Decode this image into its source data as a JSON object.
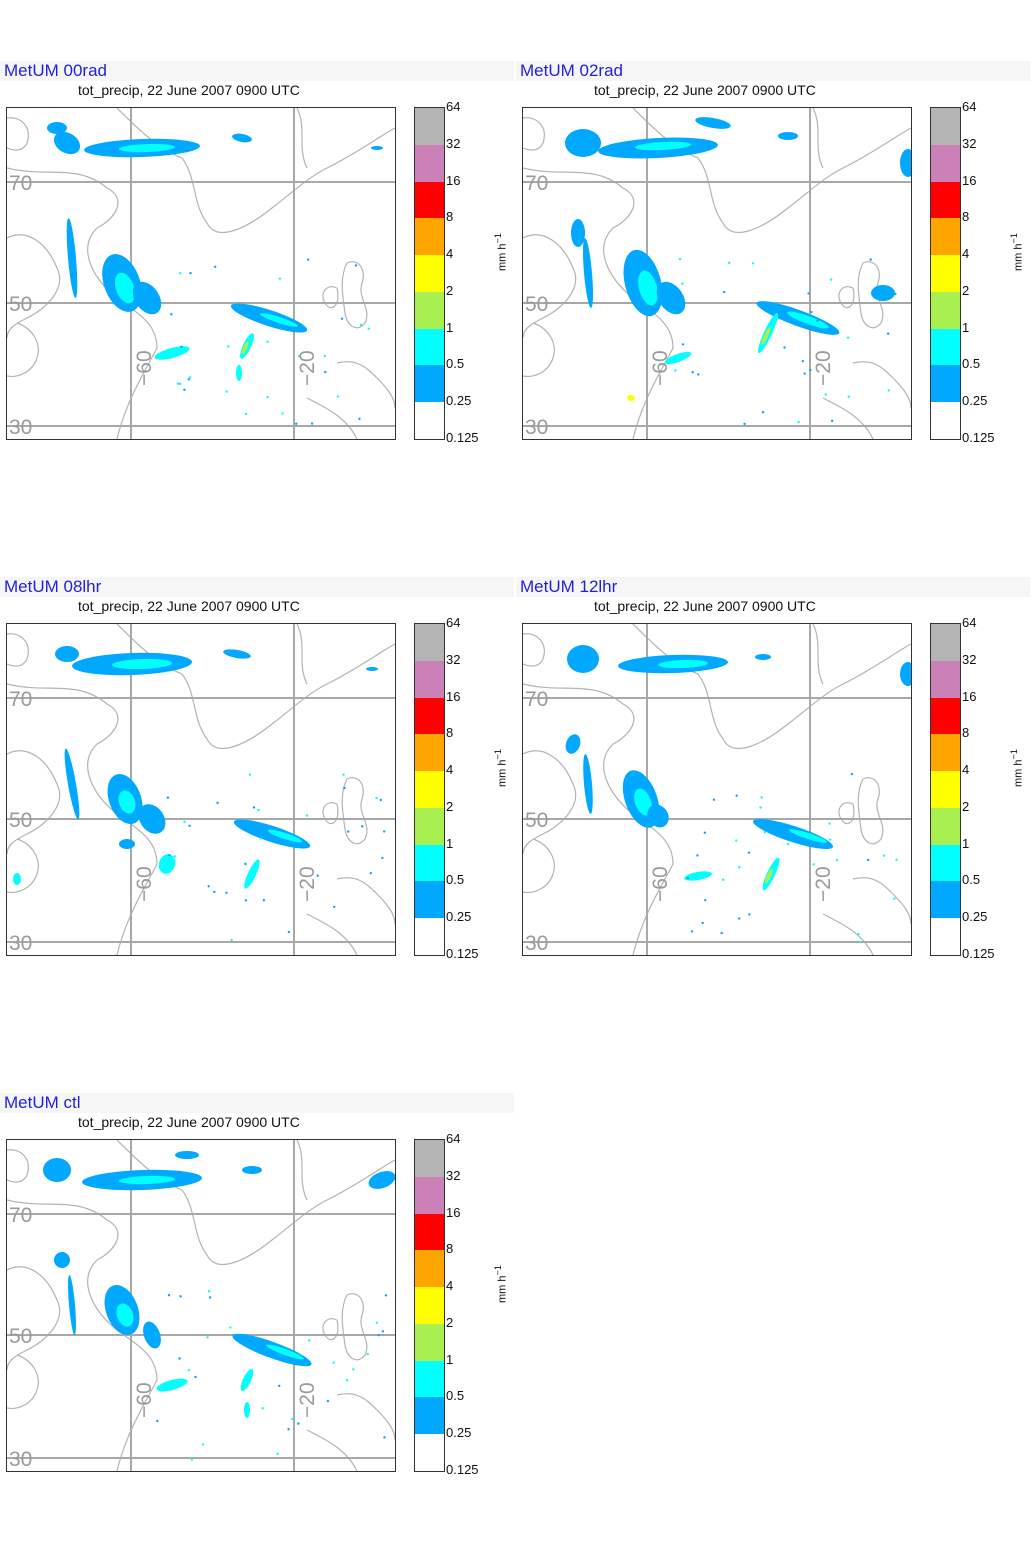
{
  "subtitle": "tot_precip, 22 June 2007 0900 UTC",
  "unit": "mm h",
  "unit_exp": "−1",
  "lat_labels": [
    "70",
    "50",
    "30"
  ],
  "lon_labels": [
    "−60",
    "−20"
  ],
  "colorbar": {
    "ticks": [
      "64",
      "32",
      "16",
      "8",
      "4",
      "2",
      "1",
      "0.5",
      "0.25",
      "0.125"
    ],
    "colors": [
      "#b4b4b4",
      "#cc80b8",
      "#ff0000",
      "#ffa500",
      "#ffff00",
      "#a8ef50",
      "#00ffff",
      "#00a8ff",
      "#ffffff"
    ]
  },
  "panels": [
    {
      "name": "MetUM 00rad"
    },
    {
      "name": "MetUM 02rad"
    },
    {
      "name": "MetUM 08lhr"
    },
    {
      "name": "MetUM 12lhr"
    },
    {
      "name": "MetUM ctl"
    }
  ]
}
